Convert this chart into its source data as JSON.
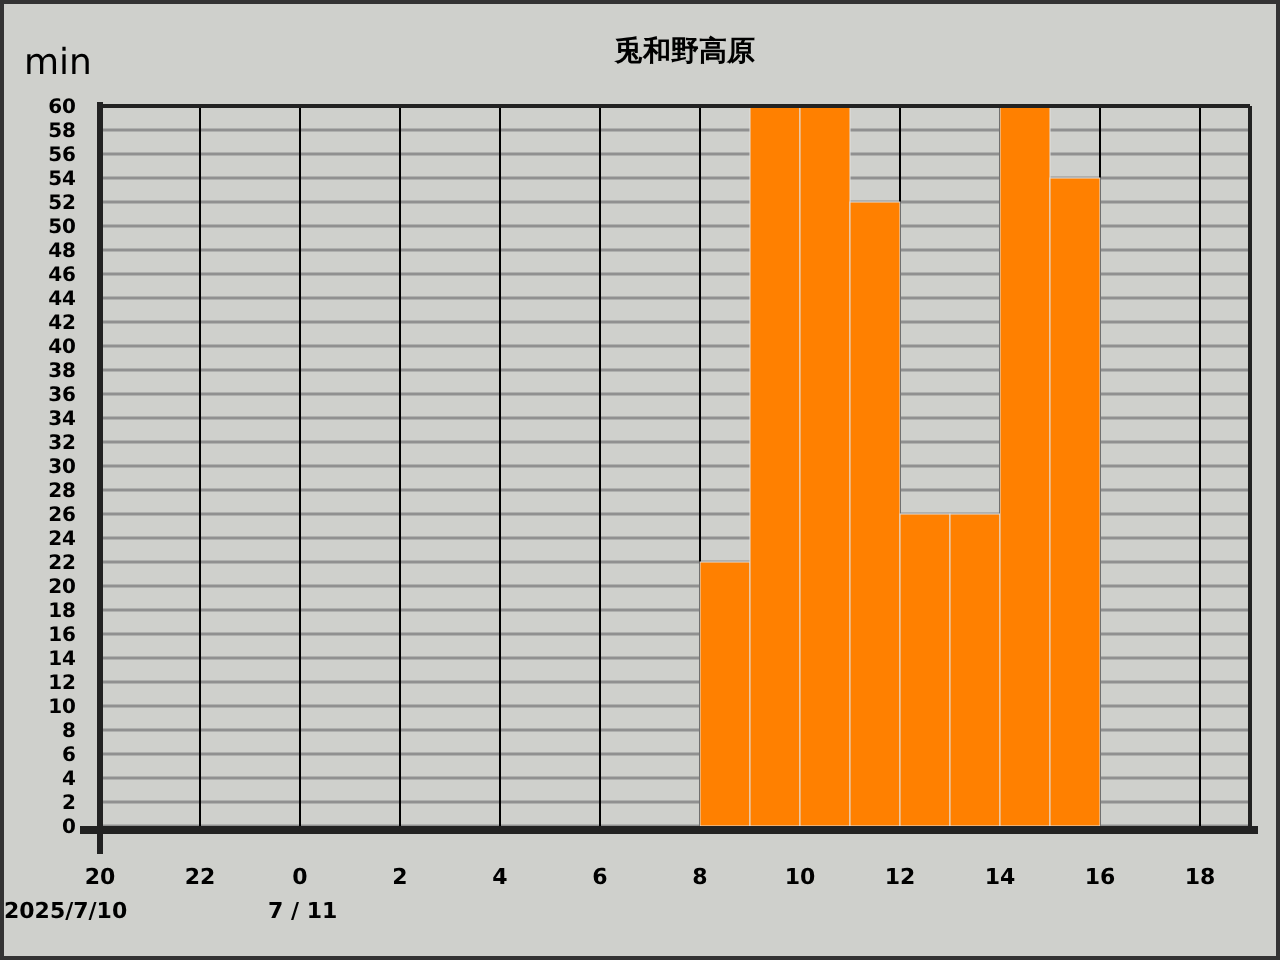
{
  "chart_data": {
    "type": "bar",
    "title": "兎和野高原",
    "ylabel": "min",
    "x": [
      "2025-07-11T08:30",
      "2025-07-11T09:30",
      "2025-07-11T10:30",
      "2025-07-11T11:30",
      "2025-07-11T12:30",
      "2025-07-11T13:30",
      "2025-07-11T14:30",
      "2025-07-11T15:30"
    ],
    "values": [
      22,
      60,
      60,
      52,
      26,
      26,
      60,
      54
    ],
    "color": "#ff8000",
    "xlim": [
      "2025-07-10T20:00",
      "2025-07-11T19:00"
    ],
    "xticks": [
      {
        "value": "2025-07-10T20:00",
        "label": "20"
      },
      {
        "value": "2025-07-10T22:00",
        "label": "22"
      },
      {
        "value": "2025-07-11T00:00",
        "label": "0"
      },
      {
        "value": "2025-07-11T02:00",
        "label": "2"
      },
      {
        "value": "2025-07-11T04:00",
        "label": "4"
      },
      {
        "value": "2025-07-11T06:00",
        "label": "6"
      },
      {
        "value": "2025-07-11T08:00",
        "label": "8"
      },
      {
        "value": "2025-07-11T10:00",
        "label": "10"
      },
      {
        "value": "2025-07-11T12:00",
        "label": "12"
      },
      {
        "value": "2025-07-11T14:00",
        "label": "14"
      },
      {
        "value": "2025-07-11T16:00",
        "label": "16"
      },
      {
        "value": "2025-07-11T18:00",
        "label": "18"
      }
    ],
    "ylim": [
      0,
      60
    ],
    "yticks": [
      0,
      2,
      4,
      6,
      8,
      10,
      12,
      14,
      16,
      18,
      20,
      22,
      24,
      26,
      28,
      30,
      32,
      34,
      36,
      38,
      40,
      42,
      44,
      46,
      48,
      50,
      52,
      54,
      56,
      58,
      60
    ],
    "annotations": [
      "2025/7/10",
      "7 / 11"
    ],
    "grid": true
  }
}
